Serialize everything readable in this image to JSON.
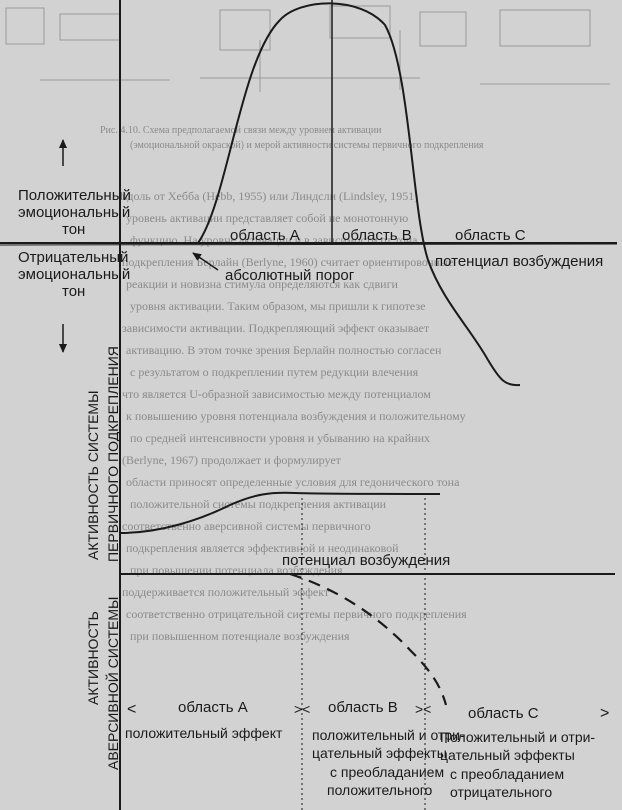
{
  "faint_caption": {
    "lines": [
      "Рис. 4.10. Схема предполагаемой связи между уровнем активации",
      "(эмоциональной окраской) и мерой активности системы первичного подкрепления"
    ]
  },
  "faint_bg_text": {
    "lines": [
      "вдоль от Хебба (Hebb, 1955) или Линдсли (Lindsley, 1951)",
      "уровень активации представляет собой не монотонную",
      "функцию. На уровне активации и в зависимости от тона",
      "подкрепления Берлайн (Berlyne, 1960) считает ориентировочные",
      "реакции и новизна стимула определяются как сдвиги",
      "уровня активации. Таким образом, мы пришли к гипотезе",
      "зависимости активации. Подкрепляющий эффект оказывает",
      "активацию. В этом точке зрения Берлайн полностью согласен",
      "с результатом о подкреплении путем редукции влечения",
      "что является U-образной зависимостью между потенциалом",
      "к повышению уровня потенциала возбуждения и положительному",
      "по средней интенсивности уровня и убыванию на крайних",
      "(Berlyne, 1967) продолжает и формулирует",
      "области приносят определенные условия для гедонического тона",
      "положительной системы подкрепления активации",
      "соответственно аверсивной системы первичного",
      "подкрепления является эффективной и неодинаковой",
      "при повышении потенциала возбуждения",
      "поддерживается положительный эффект",
      "соответственно отрицательной системы первичного подкрепления",
      "при повышенном потенциале возбуждения"
    ]
  },
  "top_panel": {
    "y_up_label": [
      "Положительный",
      "эмоциональный",
      "тон"
    ],
    "y_down_label": [
      "Отрицательный",
      "эмоциональный",
      "тон"
    ],
    "regions": [
      "область A",
      "область B",
      "область C"
    ],
    "x_axis_label": "потенциал возбуждения",
    "threshold_label": "абсолютный порог"
  },
  "bottom_panel": {
    "y_label_pos": [
      "АКТИВНОСТЬ СИСТЕМЫ",
      "ПЕРВИЧНОГО ПОДКРЕПЛЕНИЯ"
    ],
    "y_label_neg": [
      "АКТИВНОСТЬ",
      "АВЕРСИВНОЙ СИСТЕМЫ"
    ],
    "x_axis_label": "потенциал возбуждения",
    "regions": [
      "область A",
      "область B",
      "область C"
    ],
    "effect_a": [
      "положительный эффект"
    ],
    "effect_b": [
      "положительный и отри-",
      "цательный эффекты",
      "с преобладанием",
      "положительного"
    ],
    "effect_c": [
      "Положительный и отри-",
      "цательный эффекты",
      "с преобладанием",
      "отрицательного"
    ]
  }
}
